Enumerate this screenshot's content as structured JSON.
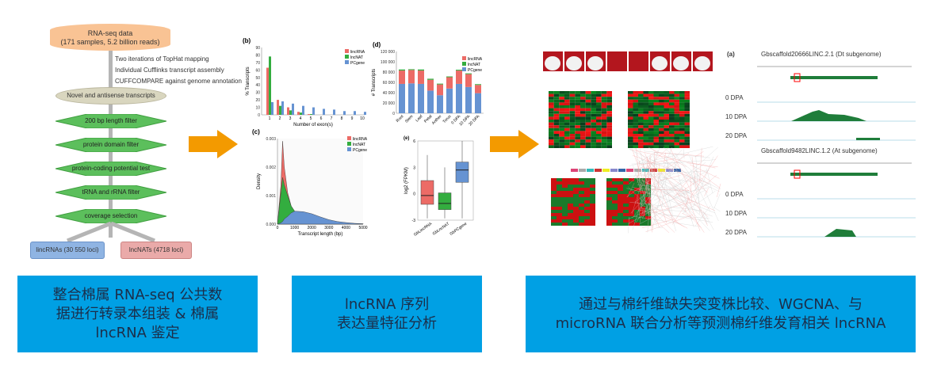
{
  "flowchart": {
    "source": "RNA-seq data",
    "source_detail": "(171 samples, 5.2 billion reads)",
    "steps_annot": [
      "Two iterations of TopHat mapping",
      "Individual Cufflinks transcript assembly",
      "CUFFCOMPARE against genome annotation"
    ],
    "novel": "Novel and antisense transcripts",
    "filters": [
      "200 bp length filter",
      "protein domain filter",
      "protein-coding potential test",
      "tRNA and rRNA filter",
      "coverage selection"
    ],
    "outputs": [
      "lincRNAs (30 550 loci)",
      "lncNATs (4718 loci)"
    ]
  },
  "colors": {
    "lincRNA": "#ec6b66",
    "lncNAT": "#33ad3f",
    "PCgene": "#6693d2",
    "box": "#00a0e4",
    "arrow": "#f39a00"
  },
  "chart_data": [
    {
      "id": "b",
      "label": "(b)",
      "type": "bar",
      "xlabel": "Number of exon(s)",
      "ylabel": "% Transcripts",
      "ylim": [
        0,
        90
      ],
      "yticks": [
        0,
        10,
        20,
        30,
        40,
        50,
        60,
        70,
        80,
        90
      ],
      "categories": [
        "1",
        "2",
        "3",
        "4",
        "5",
        "6",
        "7",
        "8",
        "9",
        "10"
      ],
      "series": [
        {
          "name": "lincRNA",
          "values": [
            63,
            20,
            10,
            4,
            1,
            0,
            0,
            0,
            0,
            0
          ]
        },
        {
          "name": "lncNAT",
          "values": [
            78,
            12,
            6,
            3,
            1,
            0,
            0,
            0,
            0,
            0
          ]
        },
        {
          "name": "PCgene",
          "values": [
            17,
            18,
            15,
            12,
            10,
            8,
            7,
            5,
            5,
            4
          ]
        }
      ],
      "legend": "top-right"
    },
    {
      "id": "c",
      "label": "(c)",
      "type": "area",
      "xlabel": "Transcript length (bp)",
      "ylabel": "Density",
      "xlim": [
        0,
        5000
      ],
      "ylim": [
        0,
        0.0033
      ],
      "xticks": [
        0,
        1000,
        2000,
        3000,
        4000,
        5000
      ],
      "yticks": [
        "0.000",
        "0.001",
        "0.002",
        "0.003"
      ],
      "x": [
        0,
        200,
        300,
        400,
        600,
        800,
        1000,
        1500,
        2000,
        2500,
        3000,
        3500,
        4000,
        4500,
        5000
      ],
      "series": [
        {
          "name": "lincRNA",
          "values": [
            0,
            0.0015,
            0.0032,
            0.0022,
            0.0012,
            0.0007,
            0.0005,
            0.0003,
            0.0002,
            0.00012,
            8e-05,
            5e-05,
            3e-05,
            2e-05,
            1e-05
          ]
        },
        {
          "name": "lncNAT",
          "values": [
            0,
            0.0012,
            0.0018,
            0.0015,
            0.0011,
            0.0007,
            0.0005,
            0.0003,
            0.0002,
            0.00012,
            8e-05,
            5e-05,
            3e-05,
            2e-05,
            1e-05
          ]
        },
        {
          "name": "PCgene",
          "values": [
            0,
            5e-05,
            0.0001,
            0.0002,
            0.0003,
            0.00043,
            0.0005,
            0.00048,
            0.0004,
            0.00028,
            0.00017,
            0.0001,
            6e-05,
            3e-05,
            1e-05
          ]
        }
      ],
      "legend": "top-right"
    },
    {
      "id": "d",
      "label": "(d)",
      "type": "bar",
      "stacked": true,
      "ylabel": "# Transcripts",
      "ylim": [
        0,
        120000
      ],
      "yticks": [
        "0",
        "20 000",
        "40 000",
        "60 000",
        "80 000",
        "100 000",
        "120 000"
      ],
      "categories": [
        "Root",
        "Stem",
        "Leaf",
        "Petal",
        "Anther",
        "Torus",
        "0 DPA",
        "10 DPA",
        "20 DPA"
      ],
      "series": [
        {
          "name": "PCgene",
          "values": [
            57000,
            58000,
            57000,
            44000,
            35000,
            48000,
            57000,
            51000,
            39000
          ]
        },
        {
          "name": "lincRNA",
          "values": [
            26000,
            26000,
            26000,
            21000,
            21000,
            22000,
            26000,
            25000,
            16000
          ]
        },
        {
          "name": "lncNAT",
          "values": [
            2000,
            1500,
            2000,
            2000,
            1500,
            1500,
            1500,
            1500,
            1500
          ]
        }
      ],
      "legend": "top-right"
    },
    {
      "id": "e",
      "label": "(e)",
      "type": "box",
      "ylabel": "log2 (FPKM)",
      "ylim": [
        -3,
        6
      ],
      "yticks": [
        "-3",
        "0",
        "3",
        "6"
      ],
      "categories": [
        "GbLincRNA",
        "GbLncNAT",
        "GbPCgene"
      ],
      "boxes": [
        {
          "min": -2.8,
          "q1": -1.2,
          "median": -0.2,
          "q3": 1.5,
          "max": 4.4
        },
        {
          "min": -2.8,
          "q1": -1.8,
          "median": -1.1,
          "q3": 0.1,
          "max": 3
        },
        {
          "min": -2.8,
          "q1": 1.3,
          "median": 2.7,
          "q3": 3.6,
          "max": 6
        }
      ]
    }
  ],
  "right": {
    "panel_label": "(a)",
    "tracks": [
      {
        "title": "Gbscaffold20666LINC.2.1 (Dt subgenome)",
        "samples": [
          "0 DPA",
          "10 DPA",
          "20 DPA"
        ]
      },
      {
        "title": "Gbscaffold9482LINC.1.2 (At subgenome)",
        "samples": [
          "0 DPA",
          "10 DPA",
          "20 DPA"
        ]
      }
    ]
  },
  "captions": [
    {
      "lines": [
        "整合棉属 RNA-seq 公共数",
        "据进行转录本组装 & 棉属",
        "lncRNA 鉴定"
      ]
    },
    {
      "lines": [
        "lncRNA 序列",
        "表达量特征分析"
      ]
    },
    {
      "lines": [
        "通过与棉纤维缺失突变株比较、WGCNA、与",
        "microRNA 联合分析等预测棉纤维发育相关 lncRNA"
      ]
    }
  ]
}
